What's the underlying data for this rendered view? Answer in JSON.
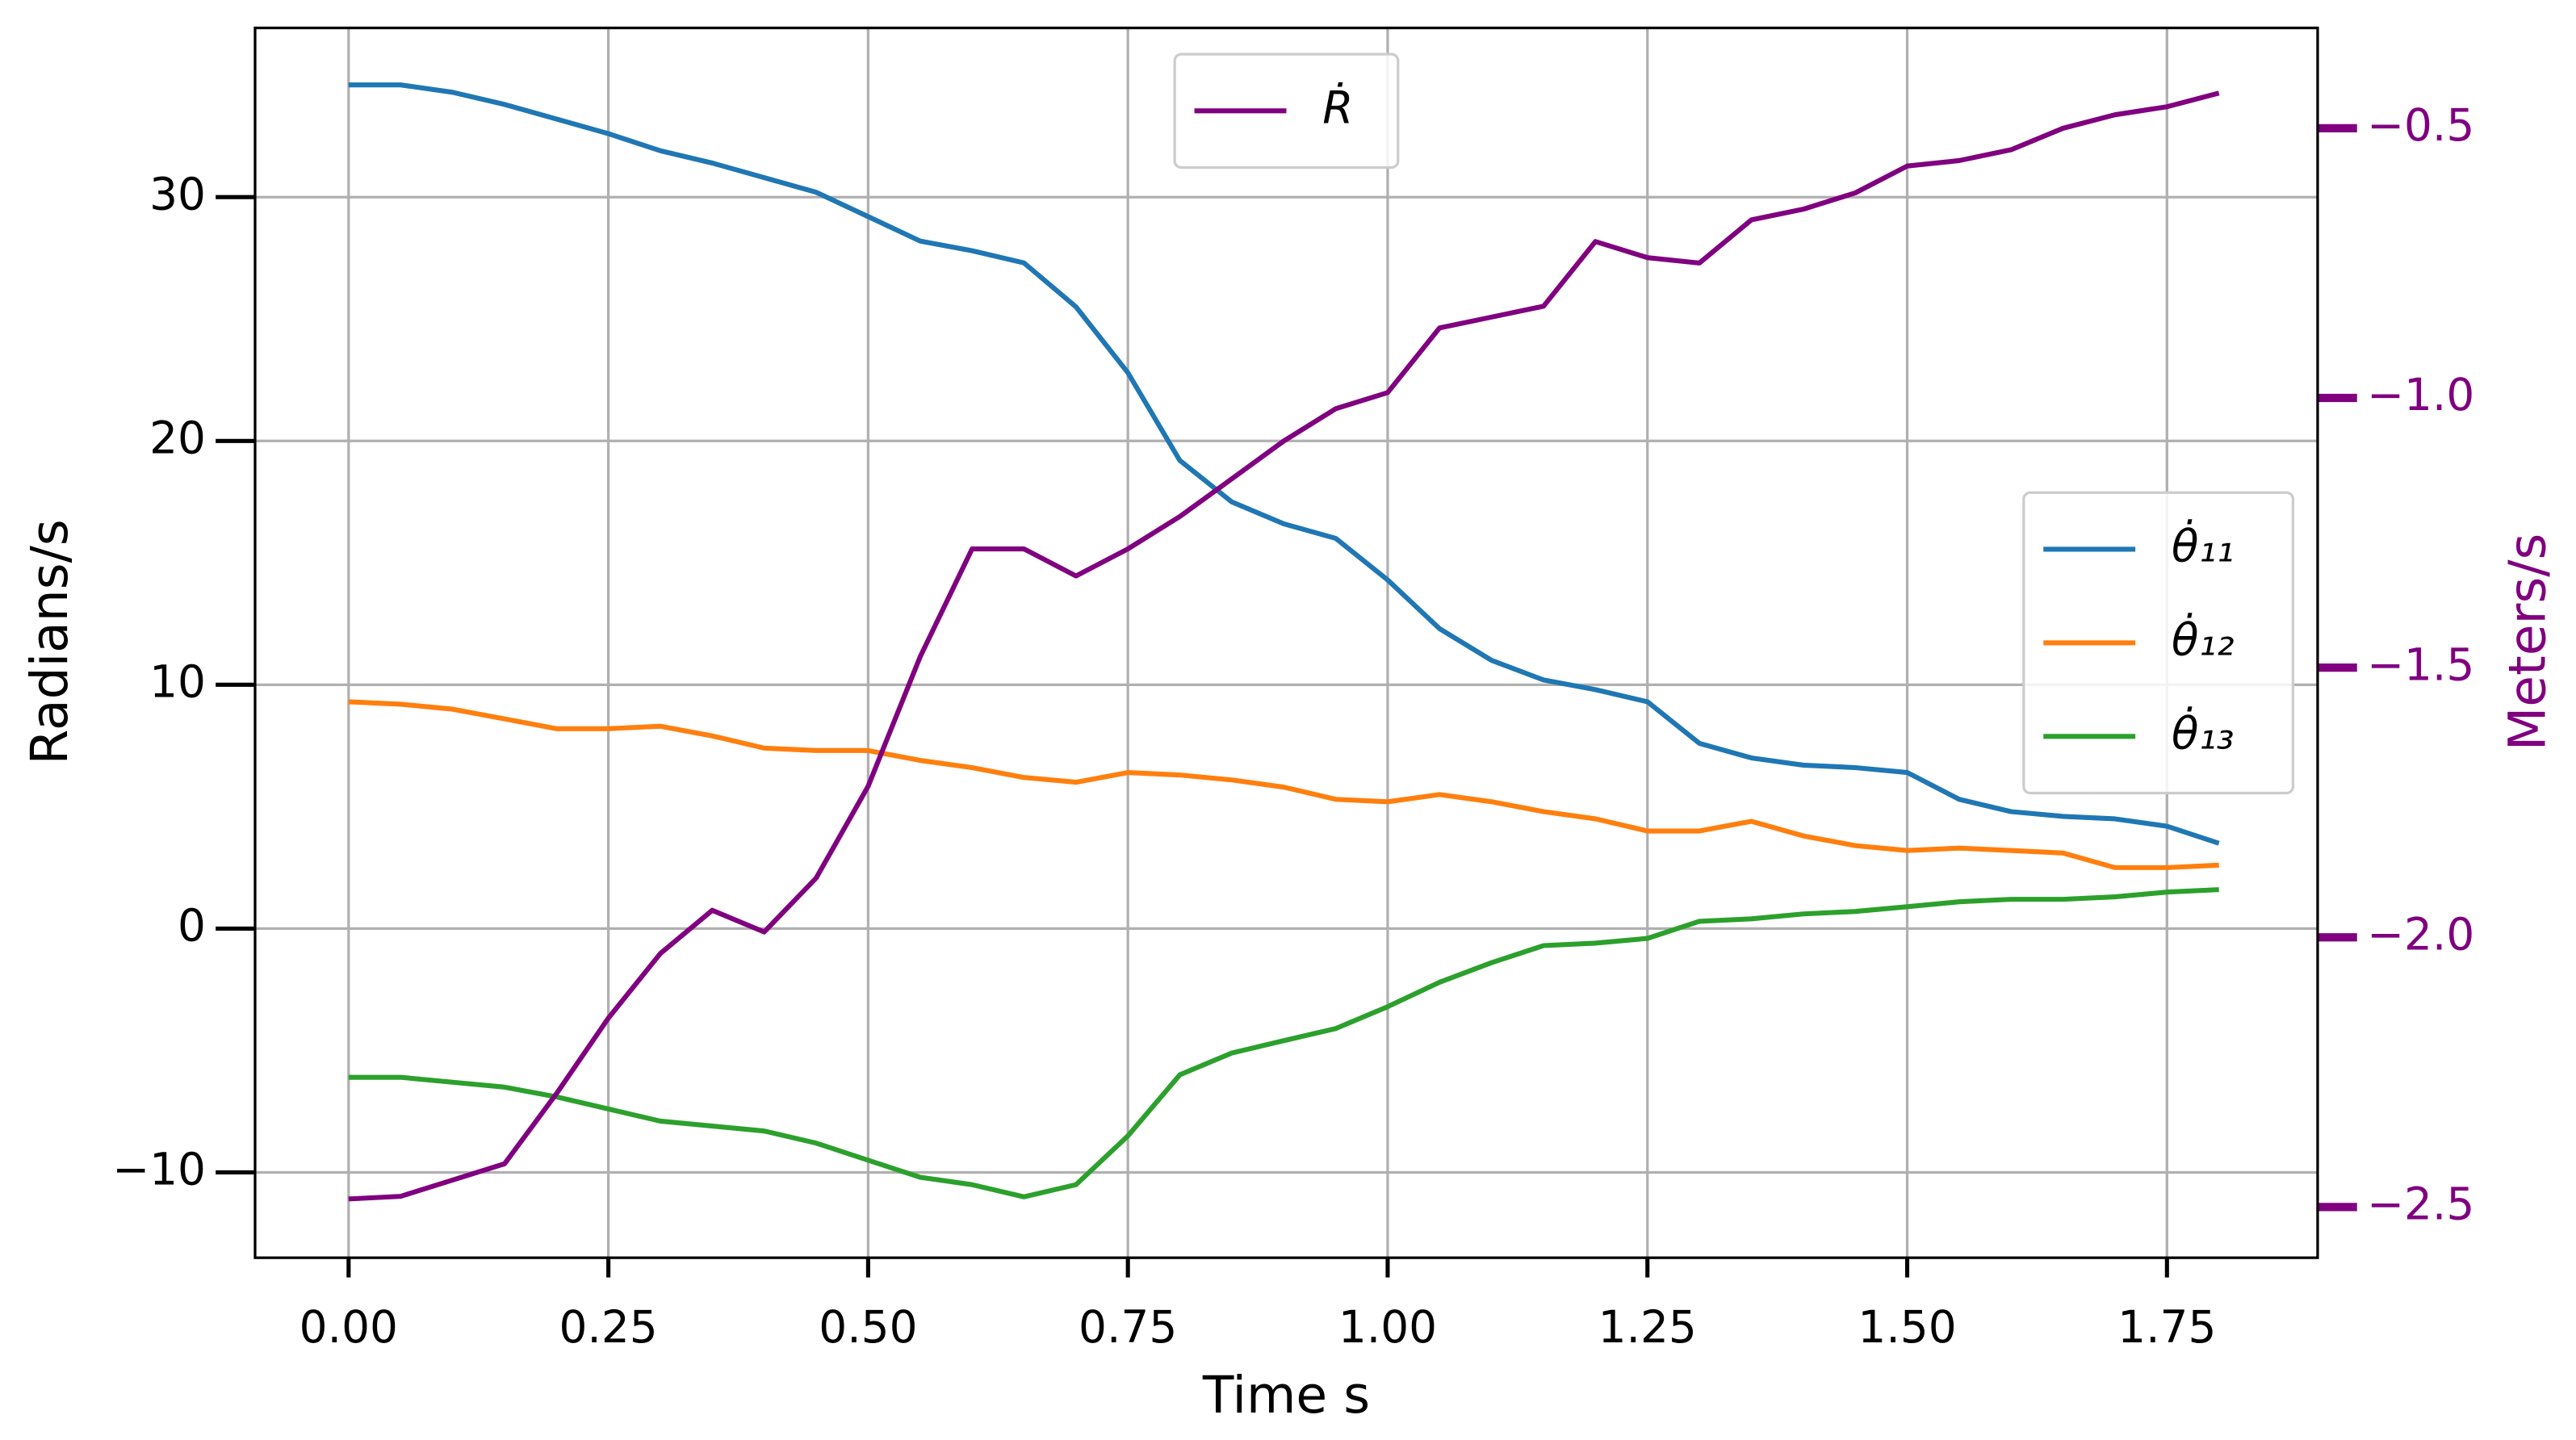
{
  "chart_data": {
    "type": "line",
    "xlabel": "Time s",
    "ylabel": "Radians/s",
    "y2label": "Meters/s",
    "y2color": "#800080",
    "x": [
      0,
      0.05,
      0.1,
      0.15,
      0.2,
      0.25,
      0.3,
      0.35,
      0.4,
      0.45,
      0.5,
      0.55,
      0.6,
      0.65,
      0.7,
      0.75,
      0.8,
      0.85,
      0.9,
      0.95,
      1.0,
      1.05,
      1.1,
      1.15,
      1.2,
      1.25,
      1.3,
      1.35,
      1.4,
      1.45,
      1.5,
      1.55,
      1.6,
      1.65,
      1.7,
      1.75,
      1.8
    ],
    "series": [
      {
        "name": "θ̇₁₁",
        "color": "#1f77b4",
        "values": [
          34.6,
          34.6,
          34.3,
          33.8,
          33.2,
          32.6,
          31.9,
          31.4,
          30.8,
          30.2,
          29.2,
          28.2,
          27.8,
          27.3,
          25.5,
          22.8,
          19.2,
          17.5,
          16.6,
          16.0,
          14.3,
          12.3,
          11.0,
          10.2,
          9.8,
          9.3,
          7.6,
          7.0,
          6.7,
          6.6,
          6.4,
          5.3,
          4.8,
          4.6,
          4.5,
          4.2,
          3.5
        ]
      },
      {
        "name": "θ̇₁₂",
        "color": "#ff7f0e",
        "values": [
          9.3,
          9.2,
          9.0,
          8.6,
          8.2,
          8.2,
          8.3,
          7.9,
          7.4,
          7.3,
          7.3,
          6.9,
          6.6,
          6.2,
          6.0,
          6.4,
          6.3,
          6.1,
          5.8,
          5.3,
          5.2,
          5.5,
          5.2,
          4.8,
          4.5,
          4.0,
          4.0,
          4.4,
          3.8,
          3.4,
          3.2,
          3.3,
          3.2,
          3.1,
          2.5,
          2.5,
          2.6
        ]
      },
      {
        "name": "θ̇₁₃",
        "color": "#2ca02c",
        "values": [
          -6.1,
          -6.1,
          -6.3,
          -6.5,
          -6.9,
          -7.4,
          -7.9,
          -8.1,
          -8.3,
          -8.8,
          -9.5,
          -10.2,
          -10.5,
          -11.0,
          -10.5,
          -8.5,
          -6.0,
          -5.1,
          -4.6,
          -4.1,
          -3.2,
          -2.2,
          -1.4,
          -0.7,
          -0.6,
          -0.4,
          0.3,
          0.4,
          0.6,
          0.7,
          0.9,
          1.1,
          1.2,
          1.2,
          1.3,
          1.5,
          1.6
        ]
      },
      {
        "name": "Ṙ",
        "color": "#800080",
        "axis": "y2",
        "values": [
          -2.485,
          -2.48,
          -2.45,
          -2.42,
          -2.29,
          -2.15,
          -2.03,
          -1.95,
          -1.99,
          -1.89,
          -1.72,
          -1.48,
          -1.28,
          -1.28,
          -1.33,
          -1.28,
          -1.22,
          -1.15,
          -1.08,
          -1.02,
          -0.99,
          -0.87,
          -0.85,
          -0.83,
          -0.71,
          -0.74,
          -0.75,
          -0.67,
          -0.65,
          -0.62,
          -0.57,
          -0.56,
          -0.54,
          -0.5,
          -0.475,
          -0.46,
          -0.435
        ]
      }
    ],
    "xlim": [
      -0.09,
      1.895
    ],
    "xticks": [
      {
        "value": 0,
        "label": "0.00"
      },
      {
        "value": 0.25,
        "label": "0.25"
      },
      {
        "value": 0.5,
        "label": "0.50"
      },
      {
        "value": 0.75,
        "label": "0.75"
      },
      {
        "value": 1.0,
        "label": "1.00"
      },
      {
        "value": 1.25,
        "label": "1.25"
      },
      {
        "value": 1.5,
        "label": "1.50"
      },
      {
        "value": 1.75,
        "label": "1.75"
      }
    ],
    "ylim": [
      -13.5,
      36.94
    ],
    "yticks": [
      {
        "value": -10,
        "label": "−10"
      },
      0,
      10,
      20,
      30
    ],
    "y2lim": [
      -2.594,
      -0.314
    ],
    "y2ticks": [
      {
        "value": -2.5,
        "label": "−2.5"
      },
      {
        "value": -2.0,
        "label": "−2.0"
      },
      {
        "value": -1.5,
        "label": "−1.5"
      },
      {
        "value": -1.0,
        "label": "−1.0"
      },
      {
        "value": -0.5,
        "label": "−0.5"
      }
    ],
    "grid": true,
    "legend": "center right",
    "legend2": "upper center"
  }
}
